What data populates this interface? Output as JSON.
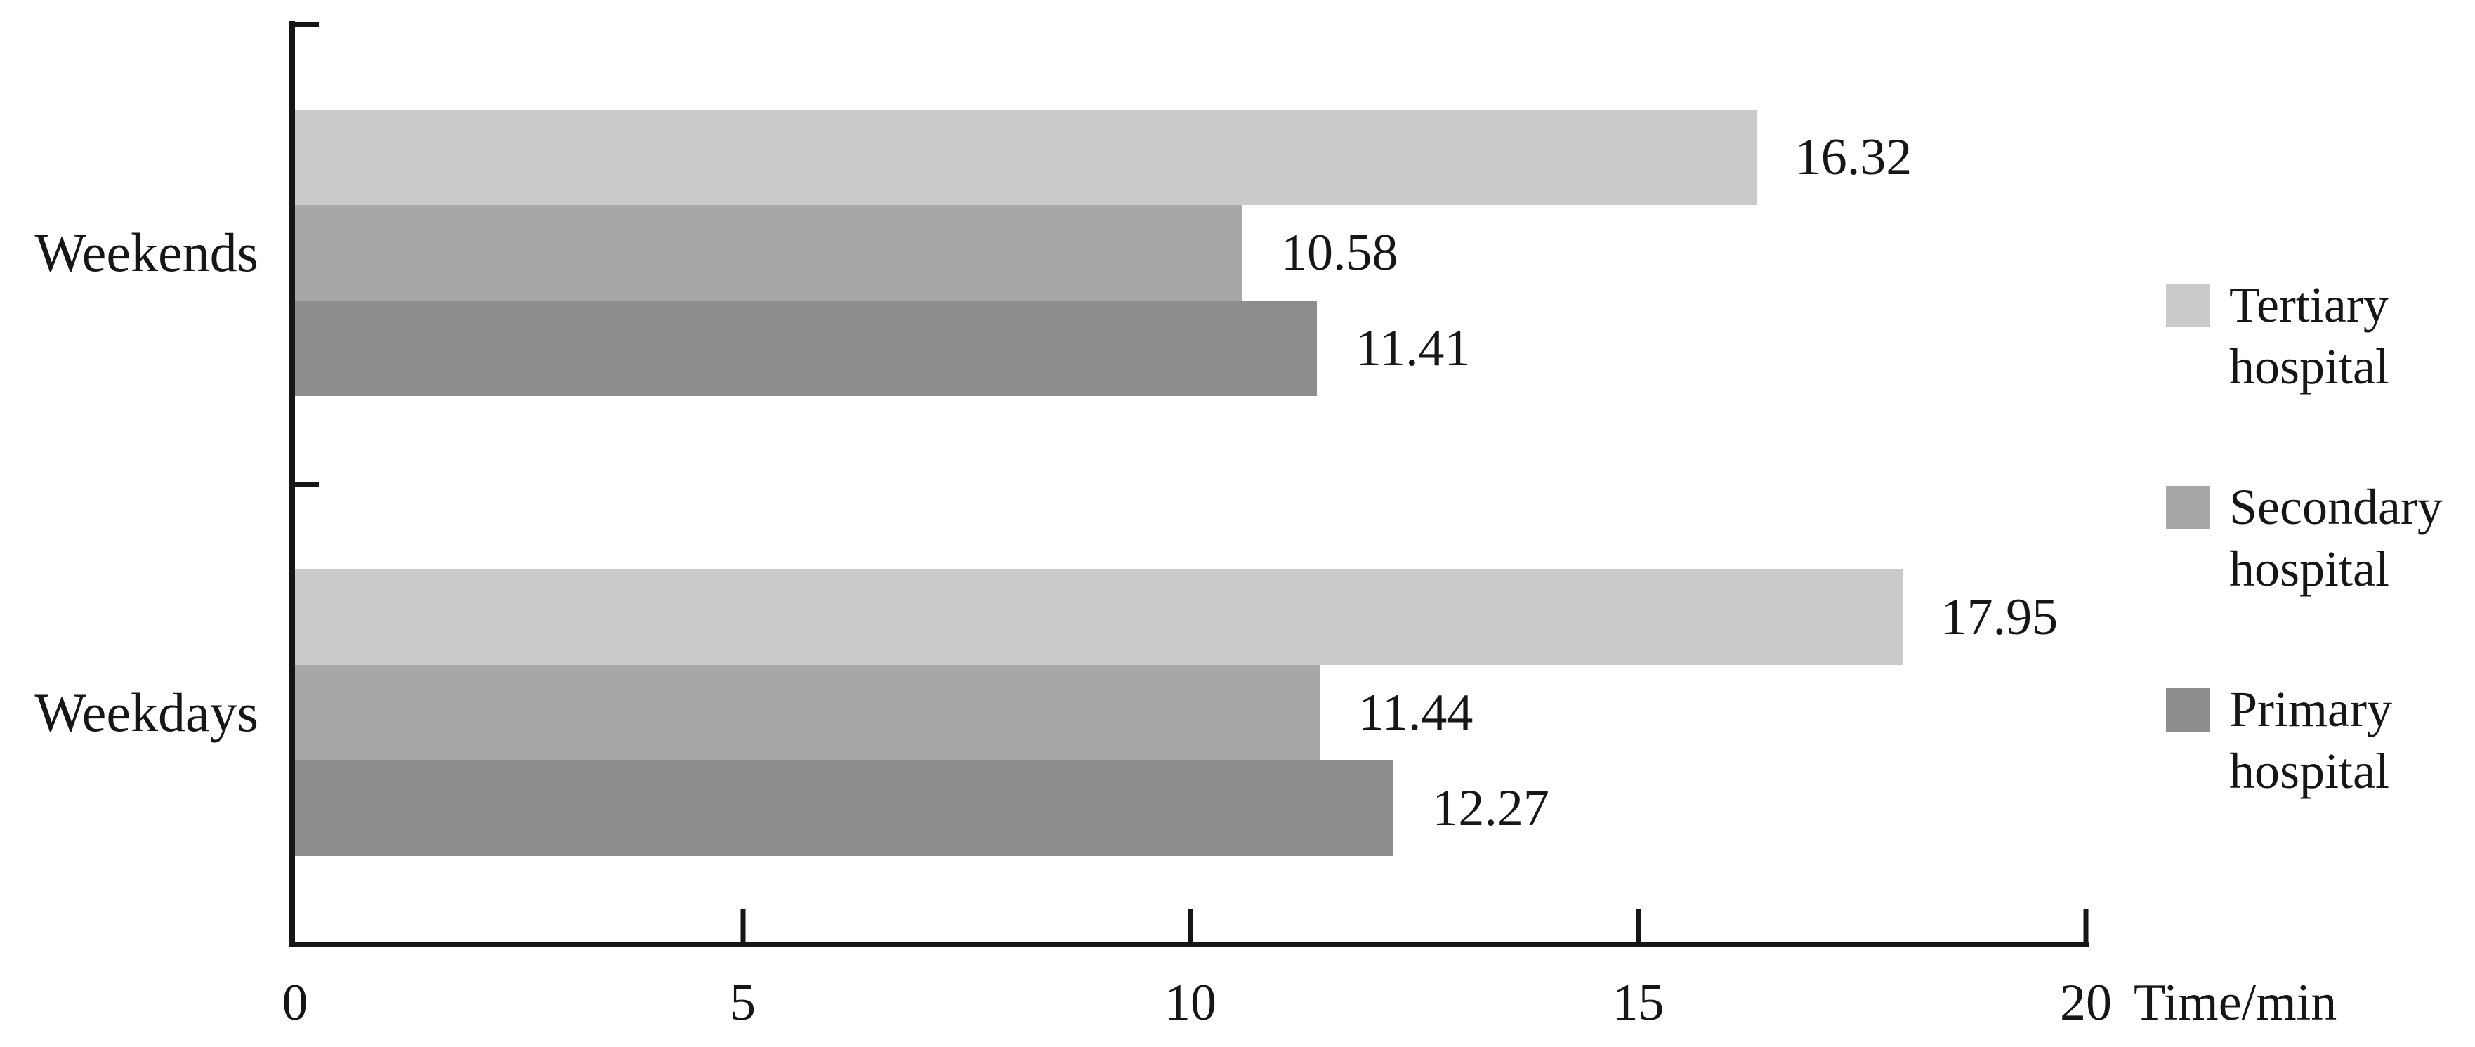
{
  "figure": {
    "background": "#ffffff",
    "axis_color": "#161616",
    "text_color": "#161616"
  },
  "chart_data": {
    "type": "bar",
    "orientation": "horizontal",
    "title": "",
    "xlabel": "Time/min",
    "ylabel": "",
    "xlim": [
      0,
      20
    ],
    "x_ticks": [
      0,
      5,
      10,
      15,
      20
    ],
    "grid": false,
    "legend_position": "right",
    "categories": [
      "Weekends",
      "Weekdays"
    ],
    "series": [
      {
        "name": "Tertiary hospital",
        "color": "#cacaca",
        "values": [
          16.32,
          17.95
        ]
      },
      {
        "name": "Secondary hospital",
        "color": "#a7a7a7",
        "values": [
          10.58,
          11.44
        ]
      },
      {
        "name": "Primary hospital",
        "color": "#8d8d8d",
        "values": [
          11.41,
          12.27
        ]
      }
    ]
  }
}
